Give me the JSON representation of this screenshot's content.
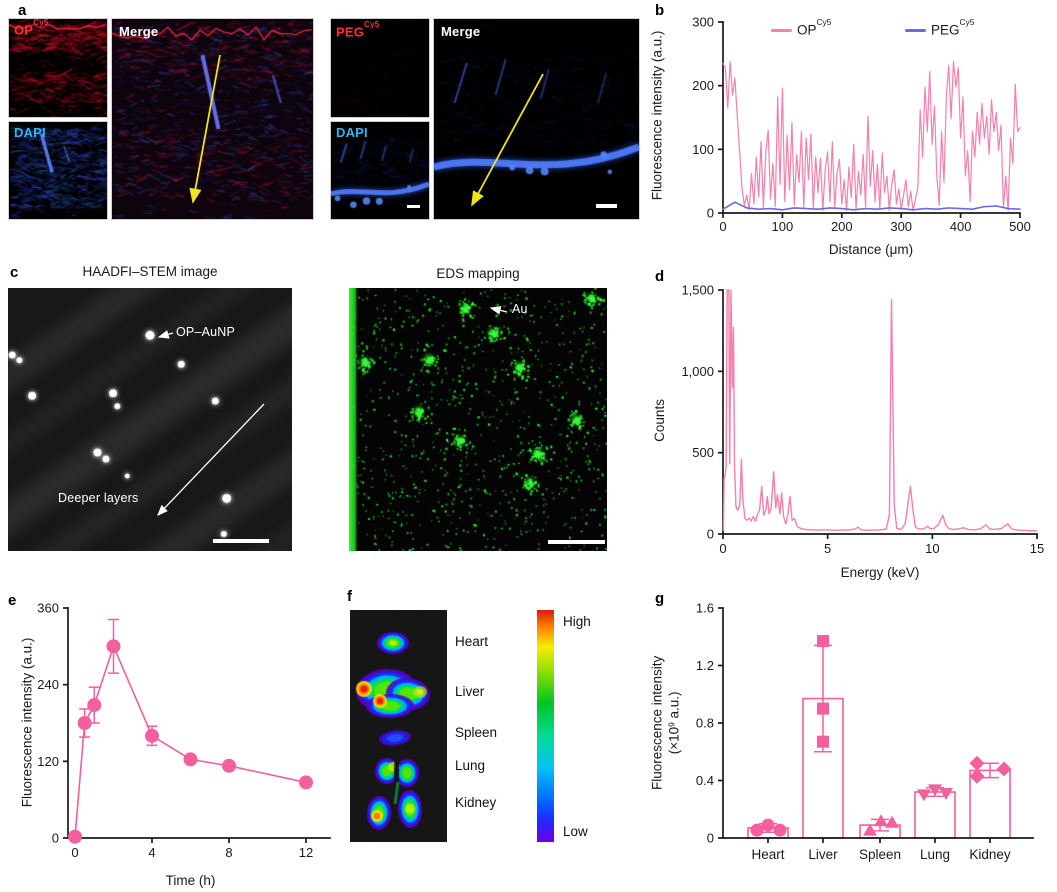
{
  "colors": {
    "line_pink": "#f77fab",
    "solid_pink": "#f45f9e",
    "line_blue": "#6a6ae4",
    "label_red": "#fa3232",
    "label_cyan": "#35b5ea",
    "label_white": "#ffffff",
    "arrow_yellow": "#f0e41e",
    "axis_black": "#1a1a1a",
    "eds_green": "#22dd22"
  },
  "panel_a": {
    "letter": "a",
    "op_label": {
      "base": "OP",
      "sup": "Cy5"
    },
    "peg_label": {
      "base": "PEG",
      "sup": "Cy5"
    },
    "dapi_label": "DAPI",
    "merge_label": "Merge"
  },
  "panel_b": {
    "letter": "b"
  },
  "panel_c": {
    "letter": "c",
    "stem_title": "HAADFI–STEM image",
    "eds_title": "EDS mapping",
    "aunp_label": "OP–AuNP",
    "deeper_label": "Deeper layers",
    "au_label": "Au",
    "stem_particles": [
      [
        0.5,
        0.18,
        4.5
      ],
      [
        0.015,
        0.255,
        3.5
      ],
      [
        0.04,
        0.275,
        3
      ],
      [
        0.085,
        0.41,
        4
      ],
      [
        0.37,
        0.4,
        4
      ],
      [
        0.385,
        0.45,
        3
      ],
      [
        0.61,
        0.29,
        3.5
      ],
      [
        0.73,
        0.43,
        3.5
      ],
      [
        0.315,
        0.625,
        4
      ],
      [
        0.345,
        0.65,
        3.5
      ],
      [
        0.42,
        0.715,
        2.5
      ],
      [
        0.77,
        0.8,
        4.5
      ],
      [
        0.76,
        0.935,
        3
      ]
    ],
    "eds_clusters": [
      [
        0.45,
        0.08
      ],
      [
        0.56,
        0.17
      ],
      [
        0.06,
        0.28
      ],
      [
        0.31,
        0.27
      ],
      [
        0.66,
        0.3
      ],
      [
        0.27,
        0.47
      ],
      [
        0.43,
        0.58
      ],
      [
        0.73,
        0.63
      ],
      [
        0.7,
        0.74
      ],
      [
        0.94,
        0.04
      ],
      [
        0.88,
        0.5
      ]
    ]
  },
  "panel_d": {
    "letter": "d"
  },
  "panel_e": {
    "letter": "e"
  },
  "panel_f": {
    "letter": "f",
    "labels": [
      "Heart",
      "Liver",
      "Spleen",
      "Lung",
      "Kidney"
    ],
    "high_label": "High",
    "low_label": "Low",
    "colorbar_stops": [
      "#dd1a10",
      "#ff7d00",
      "#f5ee00",
      "#7ddd00",
      "#00c525",
      "#00dd9a",
      "#00c2f5",
      "#0077ff",
      "#1f2bff",
      "#6a00e8"
    ],
    "colorbar_pos": [
      0,
      7,
      16,
      28,
      40,
      55,
      68,
      80,
      90,
      100
    ]
  },
  "panel_g": {
    "letter": "g"
  },
  "chart_data": [
    {
      "panel": "b",
      "type": "line",
      "xlabel": "Distance (μm)",
      "ylabel": "Fluorescence intensity (a.u.)",
      "xlim": [
        0,
        500
      ],
      "ylim": [
        0,
        300
      ],
      "xticks": [
        0,
        100,
        200,
        300,
        400,
        500
      ],
      "yticks": [
        0,
        100,
        200,
        300
      ],
      "grid": false,
      "legend_position": "top",
      "legend": [
        {
          "base": "OP",
          "sup": "Cy5",
          "color": "#f77fab"
        },
        {
          "base": "PEG",
          "sup": "Cy5",
          "color": "#6a6ae4"
        }
      ],
      "series": [
        {
          "name": "OP-Cy5",
          "color": "#f77fab",
          "x_start": 0,
          "x_step": 4,
          "values": [
            235,
            228,
            165,
            238,
            185,
            212,
            152,
            96,
            38,
            12,
            28,
            5,
            62,
            14,
            88,
            25,
            112,
            8,
            95,
            130,
            22,
            78,
            10,
            182,
            45,
            196,
            18,
            122,
            36,
            142,
            12,
            92,
            48,
            128,
            8,
            118,
            52,
            124,
            6,
            88,
            32,
            86,
            4,
            68,
            96,
            18,
            112,
            8,
            62,
            84,
            14,
            52,
            4,
            72,
            24,
            108,
            6,
            66,
            28,
            92,
            10,
            152,
            42,
            98,
            18,
            76,
            6,
            94,
            32,
            58,
            4,
            44,
            68,
            14,
            38,
            6,
            28,
            52,
            10,
            34,
            4,
            22,
            40,
            162,
            88,
            198,
            128,
            222,
            108,
            168,
            58,
            12,
            128,
            48,
            182,
            232,
            148,
            238,
            198,
            228,
            118,
            182,
            58,
            98,
            18,
            128,
            88,
            158,
            108,
            172,
            118,
            152,
            92,
            178,
            128,
            158,
            98,
            138,
            8,
            58,
            4,
            118,
            78,
            202,
            128,
            134
          ]
        },
        {
          "name": "PEG-Cy5",
          "color": "#6a6ae4",
          "x_start": 0,
          "x_step": 20,
          "values": [
            6,
            17,
            8,
            6,
            7,
            5,
            8,
            7,
            6,
            8,
            7,
            5,
            7,
            6,
            8,
            7,
            5,
            7,
            6,
            8,
            7,
            6,
            10,
            11,
            7,
            6
          ]
        }
      ]
    },
    {
      "panel": "d",
      "type": "line",
      "xlabel": "Energy (keV)",
      "ylabel": "Counts",
      "xlim": [
        0,
        15
      ],
      "ylim": [
        0,
        1500
      ],
      "xticks": [
        0,
        5,
        10,
        15
      ],
      "yticks": [
        0,
        500,
        1000,
        1500
      ],
      "ytick_labels": [
        "0",
        "500",
        "1,000",
        "1,500"
      ],
      "grid": false,
      "series": [
        {
          "name": "EDS spectrum",
          "color": "#f77fab",
          "points": [
            [
              0.02,
              20
            ],
            [
              0.05,
              340
            ],
            [
              0.1,
              360
            ],
            [
              0.15,
              420
            ],
            [
              0.2,
              1600
            ],
            [
              0.28,
              1600
            ],
            [
              0.32,
              430
            ],
            [
              0.38,
              1600
            ],
            [
              0.45,
              900
            ],
            [
              0.5,
              1270
            ],
            [
              0.55,
              420
            ],
            [
              0.62,
              170
            ],
            [
              0.7,
              145
            ],
            [
              0.8,
              175
            ],
            [
              0.88,
              460
            ],
            [
              0.95,
              210
            ],
            [
              1.05,
              95
            ],
            [
              1.15,
              85
            ],
            [
              1.25,
              98
            ],
            [
              1.35,
              80
            ],
            [
              1.45,
              108
            ],
            [
              1.55,
              78
            ],
            [
              1.65,
              120
            ],
            [
              1.75,
              150
            ],
            [
              1.85,
              292
            ],
            [
              1.95,
              115
            ],
            [
              2.05,
              150
            ],
            [
              2.12,
              230
            ],
            [
              2.2,
              125
            ],
            [
              2.3,
              160
            ],
            [
              2.42,
              382
            ],
            [
              2.52,
              160
            ],
            [
              2.6,
              242
            ],
            [
              2.72,
              125
            ],
            [
              2.8,
              252
            ],
            [
              2.9,
              105
            ],
            [
              3.0,
              62
            ],
            [
              3.1,
              120
            ],
            [
              3.2,
              232
            ],
            [
              3.3,
              85
            ],
            [
              3.42,
              95
            ],
            [
              3.55,
              45
            ],
            [
              3.7,
              35
            ],
            [
              3.9,
              28
            ],
            [
              4.2,
              26
            ],
            [
              4.5,
              24
            ],
            [
              4.8,
              26
            ],
            [
              5.1,
              24
            ],
            [
              5.4,
              23
            ],
            [
              5.7,
              25
            ],
            [
              6.0,
              24
            ],
            [
              6.3,
              30
            ],
            [
              6.45,
              42
            ],
            [
              6.6,
              26
            ],
            [
              6.9,
              23
            ],
            [
              7.2,
              24
            ],
            [
              7.5,
              25
            ],
            [
              7.8,
              30
            ],
            [
              7.95,
              120
            ],
            [
              8.05,
              1440
            ],
            [
              8.18,
              180
            ],
            [
              8.3,
              35
            ],
            [
              8.5,
              28
            ],
            [
              8.7,
              60
            ],
            [
              8.85,
              200
            ],
            [
              8.95,
              292
            ],
            [
              9.08,
              140
            ],
            [
              9.2,
              40
            ],
            [
              9.4,
              30
            ],
            [
              9.6,
              32
            ],
            [
              9.78,
              48
            ],
            [
              9.9,
              32
            ],
            [
              10.1,
              35
            ],
            [
              10.3,
              60
            ],
            [
              10.5,
              115
            ],
            [
              10.65,
              55
            ],
            [
              10.8,
              32
            ],
            [
              11.0,
              28
            ],
            [
              11.2,
              30
            ],
            [
              11.5,
              38
            ],
            [
              11.7,
              28
            ],
            [
              12.0,
              26
            ],
            [
              12.3,
              32
            ],
            [
              12.55,
              56
            ],
            [
              12.75,
              30
            ],
            [
              13.0,
              28
            ],
            [
              13.3,
              34
            ],
            [
              13.6,
              62
            ],
            [
              13.8,
              30
            ],
            [
              14.1,
              24
            ],
            [
              14.4,
              22
            ],
            [
              14.7,
              20
            ],
            [
              15.0,
              20
            ]
          ]
        }
      ]
    },
    {
      "panel": "e",
      "type": "scatter-line",
      "xlabel": "Time (h)",
      "ylabel": "Fluorescence intensity (a.u.)",
      "xlim": [
        0,
        13
      ],
      "ylim": [
        0,
        360
      ],
      "xticks": [
        0,
        4,
        8,
        12
      ],
      "yticks": [
        0,
        120,
        240,
        360
      ],
      "grid": false,
      "color": "#f45f9e",
      "x": [
        0,
        0.5,
        1,
        2,
        4,
        6,
        8,
        12
      ],
      "values": [
        2,
        180,
        208,
        300,
        160,
        123,
        113,
        87
      ],
      "errors": [
        0,
        22,
        28,
        42,
        15,
        0,
        0,
        0
      ]
    },
    {
      "panel": "g",
      "type": "bar",
      "ylabel_line1": "Fluorescence intensity",
      "ylabel_line2_pre": "(×10",
      "ylabel_line2_sup": "9",
      "ylabel_line2_post": " a.u.)",
      "ylim": [
        0,
        1.6
      ],
      "yticks": [
        0,
        0.4,
        0.8,
        1.2,
        1.6
      ],
      "ytick_labels": [
        "0",
        "0.4",
        "0.8",
        "1.2",
        "1.6"
      ],
      "grid": false,
      "color": "#f45f9e",
      "categories": [
        "Heart",
        "Liver",
        "Spleen",
        "Lung",
        "Kidney"
      ],
      "values": [
        0.07,
        0.97,
        0.09,
        0.32,
        0.47
      ],
      "errors": [
        0.03,
        0.37,
        0.04,
        0.03,
        0.05
      ],
      "points": [
        [
          0.055,
          0.09,
          0.055
        ],
        [
          1.37,
          0.9,
          0.67
        ],
        [
          0.055,
          0.12,
          0.11
        ],
        [
          0.3,
          0.335,
          0.31
        ],
        [
          0.52,
          0.43,
          0.48
        ]
      ],
      "point_offsets": [
        [
          -11,
          0,
          12
        ],
        [
          0,
          0,
          0
        ],
        [
          -10,
          1,
          12
        ],
        [
          -11,
          0,
          11
        ],
        [
          -13,
          -13,
          14
        ]
      ],
      "markers": [
        "circle",
        "square",
        "triangle-up",
        "triangle-down",
        "diamond"
      ]
    }
  ]
}
